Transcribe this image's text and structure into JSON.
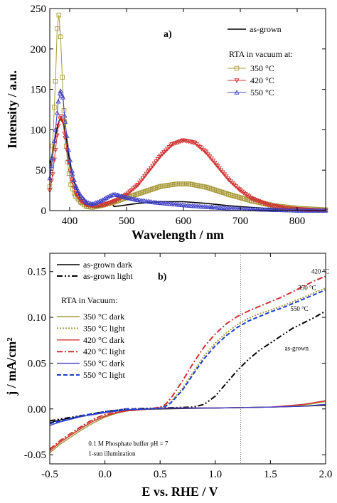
{
  "chart_data": [
    {
      "type": "line",
      "panel_label": "a)",
      "xlabel": "Wavelength / nm",
      "ylabel": "Intensity / a.u.",
      "xlim": [
        365,
        850
      ],
      "ylim": [
        0,
        250
      ],
      "xticks": [
        400,
        500,
        600,
        700,
        800
      ],
      "yticks": [
        0,
        50,
        100,
        150,
        200,
        250
      ],
      "grid": false,
      "legend_position": "top-right",
      "legend_subtitle": "RTA in vacuum at:",
      "series": [
        {
          "name": "as-grown",
          "color": "#000000",
          "marker": "none",
          "x": [
            365,
            372,
            378,
            382,
            386,
            390,
            395,
            400,
            410,
            420,
            430,
            440,
            460,
            468,
            473,
            478,
            490,
            520,
            560,
            600,
            640,
            680,
            720,
            760,
            800,
            850
          ],
          "y": [
            55,
            80,
            103,
            112,
            113,
            105,
            85,
            60,
            30,
            14,
            6,
            4,
            5,
            8,
            10,
            5,
            6,
            9,
            11,
            11,
            9,
            6,
            4,
            2,
            1,
            0
          ]
        },
        {
          "name": "350 °C",
          "color": "#a89a3a",
          "marker": "square",
          "x": [
            365,
            370,
            375,
            378,
            381,
            384,
            387,
            391,
            396,
            402,
            410,
            420,
            430,
            440,
            460,
            480,
            500,
            530,
            560,
            590,
            610,
            640,
            680,
            720,
            760,
            800,
            850
          ],
          "y": [
            30,
            80,
            160,
            225,
            242,
            215,
            165,
            110,
            60,
            32,
            18,
            10,
            5,
            4,
            7,
            11,
            16,
            23,
            30,
            33,
            33,
            29,
            20,
            12,
            6,
            3,
            1
          ]
        },
        {
          "name": "420 °C",
          "color": "#d03030",
          "marker": "triangle-down",
          "x": [
            365,
            370,
            375,
            380,
            384,
            388,
            392,
            398,
            405,
            412,
            420,
            430,
            440,
            460,
            480,
            500,
            520,
            540,
            560,
            580,
            600,
            620,
            640,
            660,
            680,
            700,
            720,
            750,
            780,
            820,
            850
          ],
          "y": [
            25,
            45,
            75,
            105,
            117,
            110,
            90,
            60,
            35,
            20,
            12,
            7,
            6,
            7,
            12,
            20,
            32,
            50,
            68,
            82,
            87,
            84,
            72,
            55,
            38,
            25,
            15,
            7,
            3,
            1,
            0
          ]
        },
        {
          "name": "550 °C",
          "color": "#4040c8",
          "marker": "triangle-up",
          "x": [
            365,
            370,
            375,
            380,
            384,
            388,
            392,
            398,
            405,
            412,
            420,
            430,
            440,
            455,
            470,
            478,
            485,
            500,
            520,
            550,
            580,
            610,
            650,
            700,
            750,
            800,
            850
          ],
          "y": [
            40,
            65,
            100,
            135,
            148,
            140,
            110,
            75,
            45,
            28,
            18,
            10,
            8,
            12,
            18,
            20,
            19,
            16,
            13,
            10,
            8,
            6,
            4,
            2,
            1,
            0,
            0
          ]
        }
      ]
    },
    {
      "type": "line",
      "panel_label": "b)",
      "xlabel": "E vs. RHE / V",
      "ylabel": "j / mA/cm²",
      "xlim": [
        -0.5,
        2.0
      ],
      "ylim": [
        -0.06,
        0.17
      ],
      "xticks": [
        -0.5,
        0.0,
        0.5,
        1.0,
        1.5,
        2.0
      ],
      "xtick_labels": [
        "-0.5",
        "0.0",
        "0.5",
        "1.0",
        "1.5",
        "2.0"
      ],
      "yticks": [
        -0.05,
        0.0,
        0.05,
        0.1,
        0.15
      ],
      "ytick_labels": [
        "-0.05",
        "0.00",
        "0.05",
        "0.10",
        "0.15"
      ],
      "grid": false,
      "legend_position": "top-left",
      "legend_subtitle": "RTA in Vacuum:",
      "vertical_line_x": 1.23,
      "annotations": [
        {
          "text": "420 °C",
          "x": 1.87,
          "y": 0.148
        },
        {
          "text": "350 °C",
          "x": 1.75,
          "y": 0.13
        },
        {
          "text": "550 °C",
          "x": 1.68,
          "y": 0.107
        },
        {
          "text": "as-grown",
          "x": 1.63,
          "y": 0.064
        },
        {
          "text": "0.1 M Phosphate buffer pH = 7",
          "x": -0.15,
          "y": -0.04
        },
        {
          "text": "1-sun illumination",
          "x": -0.15,
          "y": -0.051
        }
      ],
      "series": [
        {
          "name": "as-grown dark",
          "color": "#000000",
          "dash": "solid",
          "x": [
            -0.5,
            -0.4,
            -0.3,
            -0.2,
            -0.1,
            0.0,
            0.2,
            0.5,
            1.0,
            1.5,
            1.8,
            2.0
          ],
          "y": [
            -0.015,
            -0.012,
            -0.01,
            -0.008,
            -0.006,
            -0.004,
            -0.001,
            0.0,
            0.001,
            0.002,
            0.003,
            0.004
          ]
        },
        {
          "name": "as-grown light",
          "color": "#000000",
          "dash": "dashdotdot",
          "x": [
            -0.5,
            -0.4,
            -0.3,
            -0.2,
            -0.1,
            0.0,
            0.2,
            0.5,
            0.8,
            0.9,
            1.0,
            1.1,
            1.2,
            1.3,
            1.4,
            1.5,
            1.6,
            1.7,
            1.8,
            1.9,
            2.0
          ],
          "y": [
            -0.013,
            -0.011,
            -0.009,
            -0.007,
            -0.005,
            -0.003,
            0.0,
            0.001,
            0.002,
            0.005,
            0.014,
            0.028,
            0.042,
            0.054,
            0.064,
            0.072,
            0.08,
            0.088,
            0.094,
            0.1,
            0.107
          ]
        },
        {
          "name": "350 °C dark",
          "color": "#a89a3a",
          "dash": "solid",
          "x": [
            -0.5,
            -0.4,
            -0.3,
            -0.2,
            -0.1,
            0.0,
            0.1,
            0.2,
            0.4,
            0.6,
            1.0,
            1.5,
            1.8,
            2.0
          ],
          "y": [
            -0.048,
            -0.038,
            -0.03,
            -0.022,
            -0.015,
            -0.009,
            -0.005,
            -0.002,
            0.0,
            0.001,
            0.001,
            0.002,
            0.004,
            0.008
          ]
        },
        {
          "name": "350 °C light",
          "color": "#a89a3a",
          "dash": "dotted",
          "x": [
            -0.5,
            -0.4,
            -0.3,
            -0.2,
            -0.1,
            0.0,
            0.2,
            0.4,
            0.5,
            0.55,
            0.6,
            0.7,
            0.8,
            0.9,
            1.0,
            1.1,
            1.2,
            1.3,
            1.4,
            1.5,
            1.6,
            1.7,
            1.8,
            1.9,
            2.0
          ],
          "y": [
            -0.045,
            -0.035,
            -0.027,
            -0.019,
            -0.012,
            -0.007,
            -0.002,
            0.0,
            0.001,
            0.003,
            0.008,
            0.022,
            0.04,
            0.058,
            0.072,
            0.083,
            0.092,
            0.099,
            0.104,
            0.108,
            0.112,
            0.117,
            0.122,
            0.127,
            0.132
          ]
        },
        {
          "name": "420 °C dark",
          "color": "#d03030",
          "dash": "solid",
          "x": [
            -0.5,
            -0.4,
            -0.3,
            -0.2,
            -0.1,
            0.0,
            0.1,
            0.2,
            0.4,
            0.6,
            1.0,
            1.5,
            1.8,
            2.0
          ],
          "y": [
            -0.046,
            -0.036,
            -0.028,
            -0.02,
            -0.013,
            -0.008,
            -0.004,
            -0.002,
            0.0,
            0.001,
            0.001,
            0.002,
            0.005,
            0.009
          ]
        },
        {
          "name": "420 °C light",
          "color": "#d03030",
          "dash": "dashdot",
          "x": [
            -0.5,
            -0.4,
            -0.3,
            -0.2,
            -0.1,
            0.0,
            0.2,
            0.4,
            0.5,
            0.55,
            0.6,
            0.7,
            0.8,
            0.9,
            1.0,
            1.1,
            1.2,
            1.3,
            1.4,
            1.5,
            1.6,
            1.7,
            1.8,
            1.9,
            2.0
          ],
          "y": [
            -0.044,
            -0.034,
            -0.026,
            -0.018,
            -0.011,
            -0.006,
            -0.002,
            0.0,
            0.002,
            0.005,
            0.012,
            0.03,
            0.05,
            0.068,
            0.082,
            0.093,
            0.101,
            0.107,
            0.112,
            0.117,
            0.122,
            0.128,
            0.134,
            0.14,
            0.145
          ]
        },
        {
          "name": "550 °C dark",
          "color": "#4040c8",
          "dash": "solid",
          "x": [
            -0.5,
            -0.4,
            -0.3,
            -0.2,
            -0.1,
            0.0,
            0.2,
            0.4,
            0.6,
            1.0,
            1.5,
            1.8,
            2.0
          ],
          "y": [
            -0.018,
            -0.014,
            -0.011,
            -0.008,
            -0.006,
            -0.004,
            -0.001,
            0.0,
            0.001,
            0.001,
            0.002,
            0.003,
            0.005
          ]
        },
        {
          "name": "550 °C light",
          "color": "#1a3fd0",
          "dash": "dashed",
          "x": [
            -0.5,
            -0.4,
            -0.3,
            -0.2,
            -0.1,
            0.0,
            0.2,
            0.4,
            0.5,
            0.55,
            0.6,
            0.7,
            0.8,
            0.9,
            1.0,
            1.1,
            1.2,
            1.3,
            1.4,
            1.5,
            1.6,
            1.7,
            1.8,
            1.9,
            2.0
          ],
          "y": [
            -0.016,
            -0.013,
            -0.01,
            -0.007,
            -0.005,
            -0.003,
            0.0,
            0.0,
            0.001,
            0.003,
            0.007,
            0.02,
            0.038,
            0.055,
            0.069,
            0.08,
            0.089,
            0.096,
            0.101,
            0.106,
            0.11,
            0.115,
            0.12,
            0.125,
            0.13
          ]
        }
      ]
    }
  ]
}
